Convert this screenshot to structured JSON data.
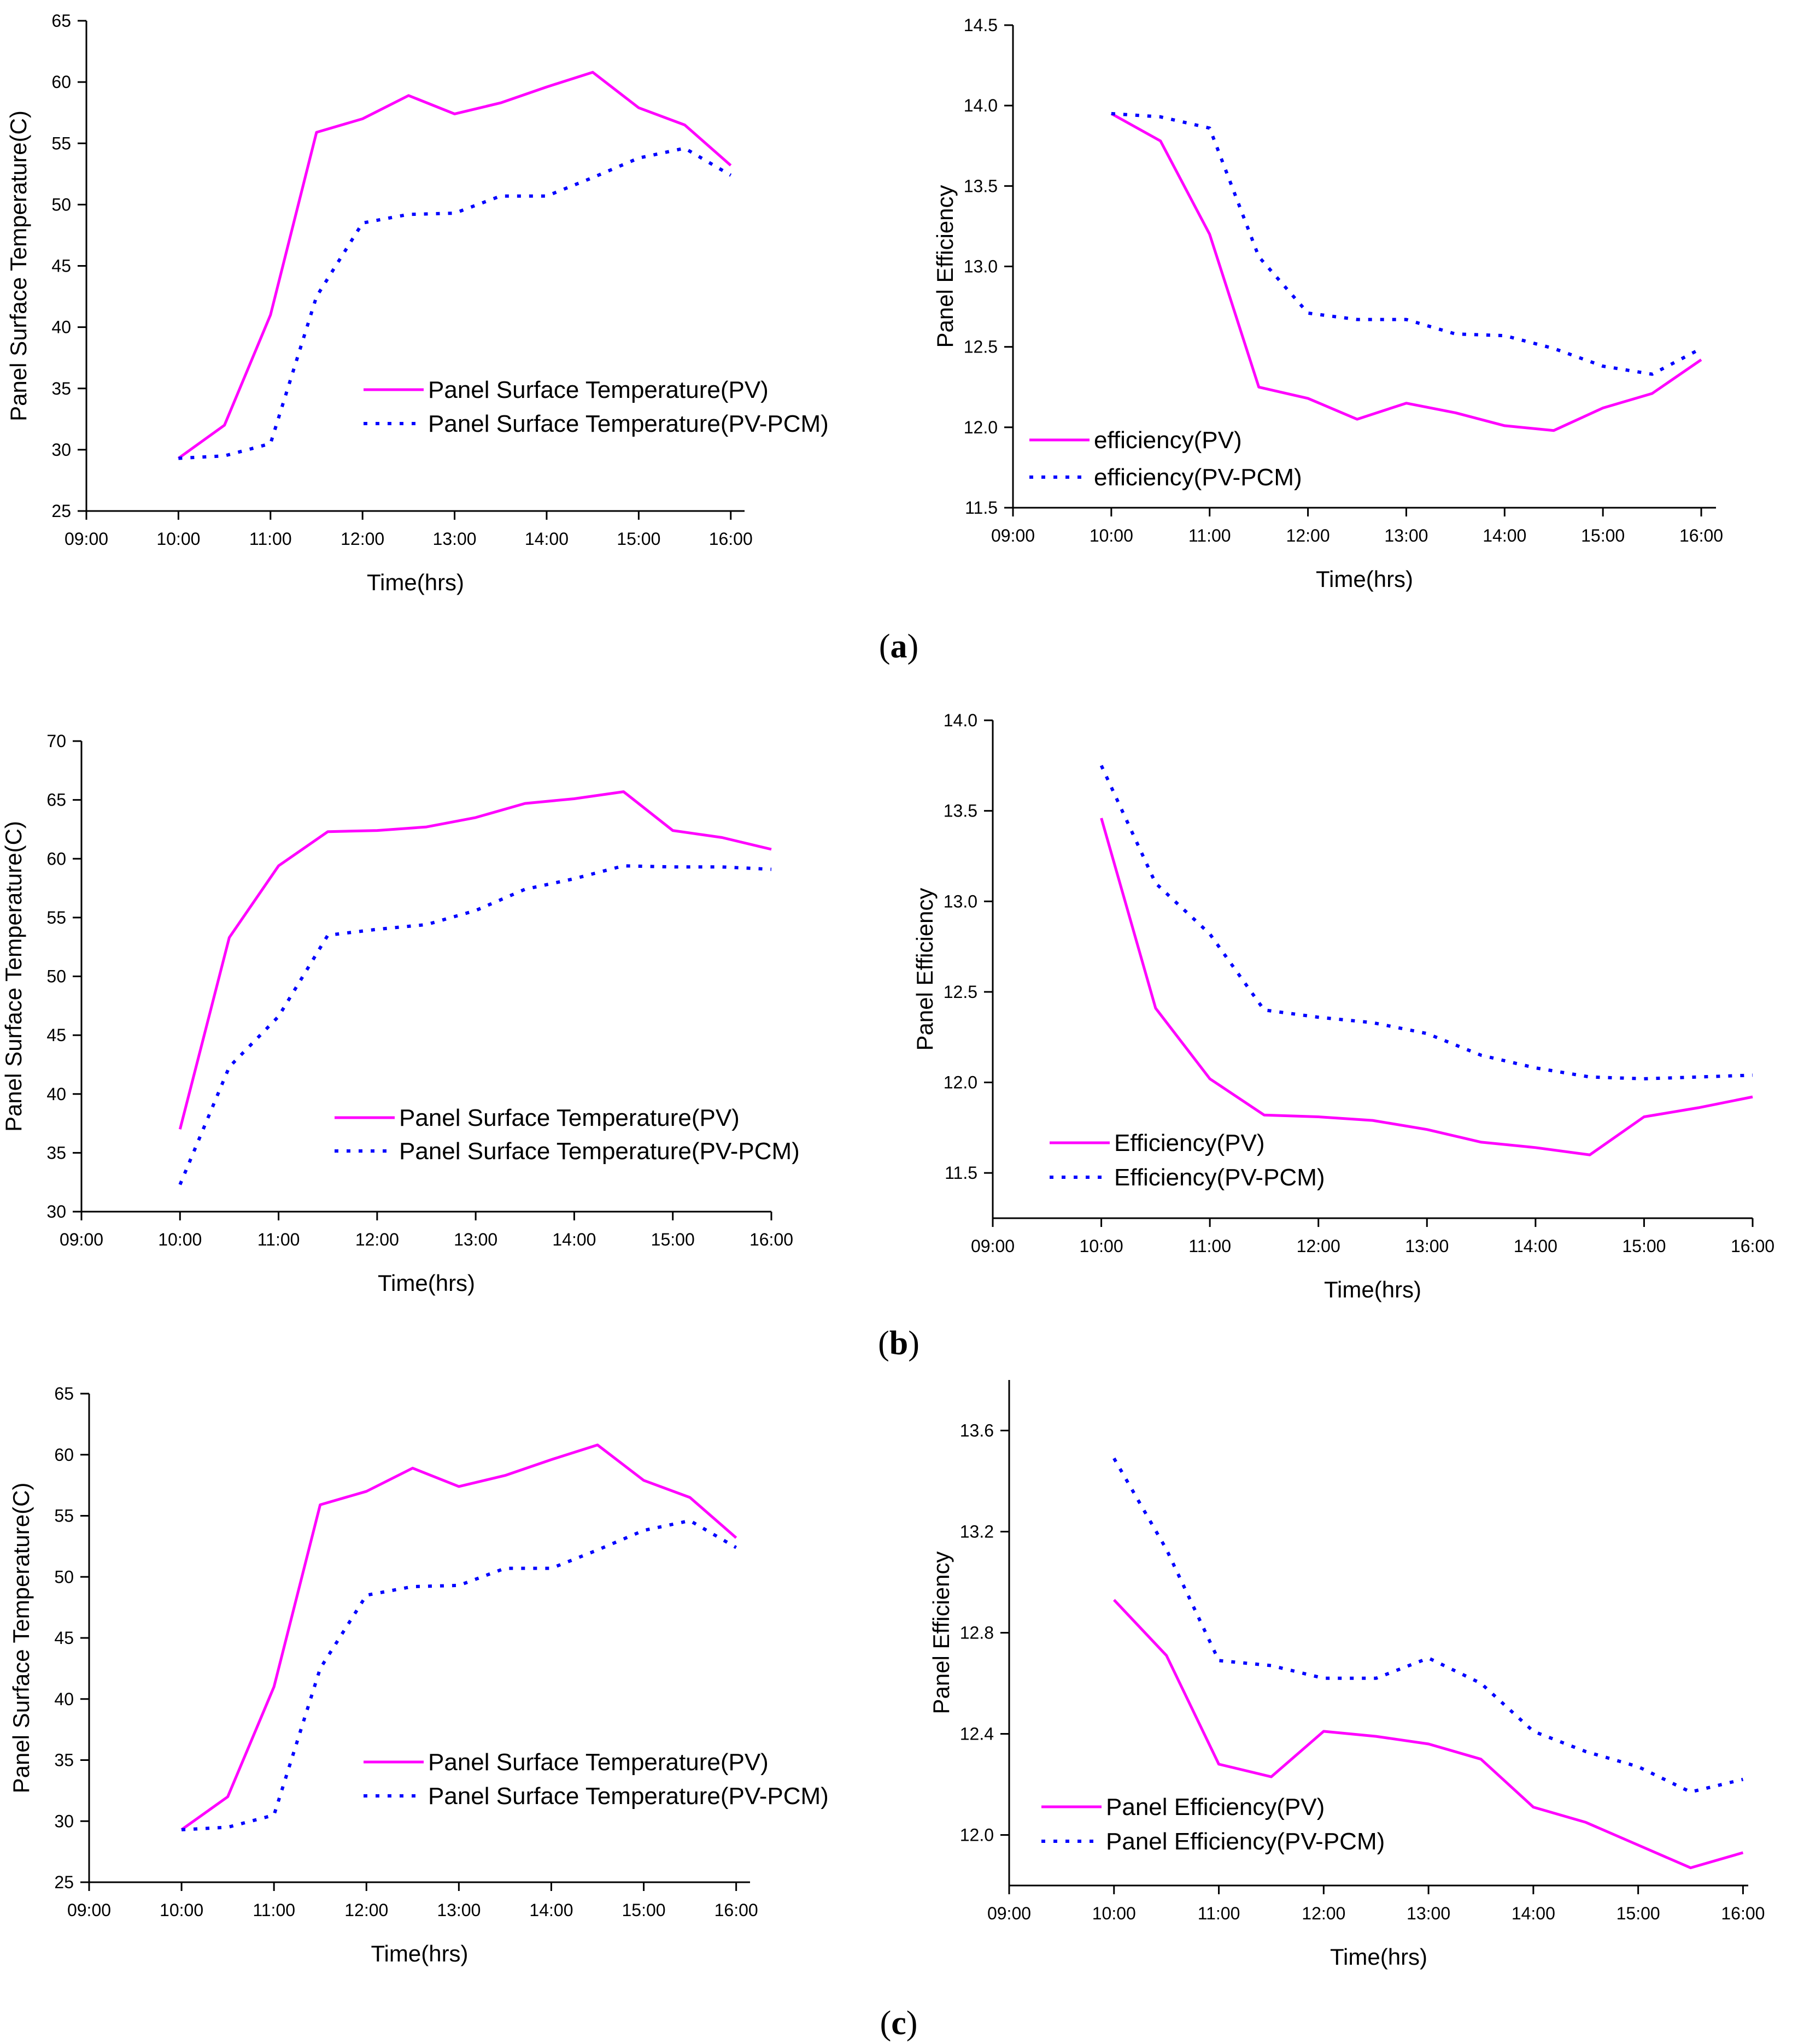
{
  "figure": {
    "panel_labels": [
      "a",
      "b",
      "c"
    ]
  },
  "colors": {
    "pv": "#ff00ff",
    "pcm": "#0000ff",
    "axis": "#000000"
  },
  "chart_data": [
    {
      "id": "a-temp",
      "type": "line",
      "xlabel": "Time(hrs)",
      "ylabel": "Panel Surface Temperature(C)",
      "x_ticks": [
        "09:00",
        "10:00",
        "11:00",
        "12:00",
        "13:00",
        "14:00",
        "15:00",
        "16:00"
      ],
      "xlim": [
        9,
        16.15
      ],
      "ylim": [
        25,
        65
      ],
      "y_ticks": [
        "25",
        "30",
        "35",
        "40",
        "45",
        "50",
        "55",
        "60",
        "65"
      ],
      "y_tick_values": [
        25,
        30,
        35,
        40,
        45,
        50,
        55,
        60,
        65
      ],
      "legend_position": "center-right",
      "series": [
        {
          "name": "Panel Surface Temperature(PV)",
          "style": "solid",
          "x": [
            10,
            10.5,
            11,
            11.5,
            12,
            12.5,
            13,
            13.5,
            14,
            14.5,
            15,
            15.5,
            16
          ],
          "values": [
            29.3,
            32,
            41,
            55.9,
            57,
            58.9,
            57.4,
            58.3,
            59.6,
            60.8,
            57.9,
            56.5,
            53.2
          ]
        },
        {
          "name": "Panel Surface Temperature(PV-PCM)",
          "style": "dotted",
          "x": [
            10,
            10.5,
            11,
            11.5,
            12,
            12.5,
            13,
            13.5,
            14,
            14.5,
            15,
            15.5,
            16
          ],
          "values": [
            29.3,
            29.5,
            30.5,
            42.5,
            48.5,
            49.2,
            49.3,
            50.7,
            50.7,
            52.2,
            53.8,
            54.6,
            52.4
          ]
        }
      ]
    },
    {
      "id": "a-eff",
      "type": "line",
      "xlabel": "Time(hrs)",
      "ylabel": "Panel Efficiency",
      "x_ticks": [
        "09:00",
        "10:00",
        "11:00",
        "12:00",
        "13:00",
        "14:00",
        "15:00",
        "16:00"
      ],
      "xlim": [
        9,
        16.15
      ],
      "ylim": [
        11.5,
        14.5
      ],
      "y_ticks": [
        "11.5",
        "12.0",
        "12.5",
        "13.0",
        "13.5",
        "14.0",
        "14.5"
      ],
      "y_tick_values": [
        11.5,
        12.0,
        12.5,
        13.0,
        13.5,
        14.0,
        14.5
      ],
      "legend_position": "bottom-left",
      "series": [
        {
          "name": "efficiency(PV)",
          "style": "solid",
          "x": [
            10,
            10.5,
            11,
            11.5,
            12,
            12.5,
            13,
            13.5,
            14,
            14.5,
            15,
            15.5,
            16
          ],
          "values": [
            13.95,
            13.78,
            13.2,
            12.25,
            12.18,
            12.05,
            12.15,
            12.09,
            12.01,
            11.98,
            12.12,
            12.21,
            12.42
          ]
        },
        {
          "name": "efficiency(PV-PCM)",
          "style": "dotted",
          "x": [
            10,
            10.5,
            11,
            11.5,
            12,
            12.5,
            13,
            13.5,
            14,
            14.5,
            15,
            15.5,
            16
          ],
          "values": [
            13.95,
            13.93,
            13.86,
            13.06,
            12.71,
            12.67,
            12.67,
            12.58,
            12.57,
            12.49,
            12.38,
            12.33,
            12.49
          ]
        }
      ]
    },
    {
      "id": "b-temp",
      "type": "line",
      "xlabel": "Time(hrs)",
      "ylabel": "Panel Surface Temperature(C)",
      "x_ticks": [
        "09:00",
        "10:00",
        "11:00",
        "12:00",
        "13:00",
        "14:00",
        "15:00",
        "16:00"
      ],
      "xlim": [
        9,
        16
      ],
      "ylim": [
        30,
        70
      ],
      "y_ticks": [
        "30",
        "35",
        "40",
        "45",
        "50",
        "55",
        "60",
        "65",
        "70"
      ],
      "y_tick_values": [
        30,
        35,
        40,
        45,
        50,
        55,
        60,
        65,
        70
      ],
      "legend_position": "bottom-right",
      "series": [
        {
          "name": "Panel Surface Temperature(PV)",
          "style": "solid",
          "x": [
            10,
            10.5,
            11,
            11.5,
            12,
            12.5,
            13,
            13.5,
            14,
            14.5,
            15,
            15.5,
            16
          ],
          "values": [
            37,
            53.3,
            59.4,
            62.3,
            62.4,
            62.7,
            63.5,
            64.7,
            65.1,
            65.7,
            62.4,
            61.8,
            60.8
          ]
        },
        {
          "name": "Panel Surface Temperature(PV-PCM)",
          "style": "dotted",
          "x": [
            10,
            10.5,
            11,
            11.5,
            12,
            12.5,
            13,
            13.5,
            14,
            14.5,
            15,
            15.5,
            16
          ],
          "values": [
            32.3,
            42.3,
            46.6,
            53.5,
            54,
            54.4,
            55.6,
            57.4,
            58.3,
            59.4,
            59.3,
            59.3,
            59.1
          ]
        }
      ]
    },
    {
      "id": "b-eff",
      "type": "line",
      "xlabel": "Time(hrs)",
      "ylabel": "Panel Efficiency",
      "x_ticks": [
        "09:00",
        "10:00",
        "11:00",
        "12:00",
        "13:00",
        "14:00",
        "15:00",
        "16:00"
      ],
      "xlim": [
        9,
        16
      ],
      "ylim": [
        11.25,
        14.0
      ],
      "y_ticks": [
        "11.5",
        "12.0",
        "12.5",
        "13.0",
        "13.5",
        "14.0"
      ],
      "y_tick_values": [
        11.5,
        12.0,
        12.5,
        13.0,
        13.5,
        14.0
      ],
      "legend_position": "bottom-left",
      "series": [
        {
          "name": "Efficiency(PV)",
          "style": "solid",
          "x": [
            10,
            10.5,
            11,
            11.5,
            12,
            12.5,
            13,
            13.5,
            14,
            14.5,
            15,
            15.5,
            16
          ],
          "values": [
            13.46,
            12.41,
            12.02,
            11.82,
            11.81,
            11.79,
            11.74,
            11.67,
            11.64,
            11.6,
            11.81,
            11.86,
            11.92
          ]
        },
        {
          "name": "Efficiency(PV-PCM)",
          "style": "dotted",
          "x": [
            10,
            10.5,
            11,
            11.5,
            12,
            12.5,
            13,
            13.5,
            14,
            14.5,
            15,
            15.5,
            16
          ],
          "values": [
            13.75,
            13.1,
            12.82,
            12.4,
            12.36,
            12.33,
            12.27,
            12.15,
            12.08,
            12.03,
            12.02,
            12.03,
            12.04
          ]
        }
      ]
    },
    {
      "id": "c-temp",
      "type": "line",
      "xlabel": "Time(hrs)",
      "ylabel": "Panel Surface Temperature(C)",
      "x_ticks": [
        "09:00",
        "10:00",
        "11:00",
        "12:00",
        "13:00",
        "14:00",
        "15:00",
        "16:00"
      ],
      "xlim": [
        9,
        16.15
      ],
      "ylim": [
        25,
        65
      ],
      "y_ticks": [
        "25",
        "30",
        "35",
        "40",
        "45",
        "50",
        "55",
        "60",
        "65"
      ],
      "y_tick_values": [
        25,
        30,
        35,
        40,
        45,
        50,
        55,
        60,
        65
      ],
      "legend_position": "center-right",
      "series": [
        {
          "name": "Panel Surface Temperature(PV)",
          "style": "solid",
          "x": [
            10,
            10.5,
            11,
            11.5,
            12,
            12.5,
            13,
            13.5,
            14,
            14.5,
            15,
            15.5,
            16
          ],
          "values": [
            29.3,
            32,
            41,
            55.9,
            57,
            58.9,
            57.4,
            58.3,
            59.6,
            60.8,
            57.9,
            56.5,
            53.2
          ]
        },
        {
          "name": "Panel Surface Temperature(PV-PCM)",
          "style": "dotted",
          "x": [
            10,
            10.5,
            11,
            11.5,
            12,
            12.5,
            13,
            13.5,
            14,
            14.5,
            15,
            15.5,
            16
          ],
          "values": [
            29.3,
            29.5,
            30.5,
            42.5,
            48.5,
            49.2,
            49.3,
            50.7,
            50.7,
            52.2,
            53.8,
            54.6,
            52.4
          ]
        }
      ]
    },
    {
      "id": "c-eff",
      "type": "line",
      "xlabel": "Time(hrs)",
      "ylabel": "Panel Efficiency",
      "x_ticks": [
        "09:00",
        "10:00",
        "11:00",
        "12:00",
        "13:00",
        "14:00",
        "15:00",
        "16:00"
      ],
      "xlim": [
        9,
        16.05
      ],
      "ylim": [
        11.8,
        13.8
      ],
      "y_ticks": [
        "12.0",
        "12.4",
        "12.8",
        "13.2",
        "13.6"
      ],
      "y_tick_values": [
        12.0,
        12.4,
        12.8,
        13.2,
        13.6
      ],
      "legend_position": "bottom-left",
      "series": [
        {
          "name": "Panel Efficiency(PV)",
          "style": "solid",
          "x": [
            10,
            10.5,
            11,
            11.5,
            12,
            12.5,
            13,
            13.5,
            14,
            14.5,
            15,
            15.5,
            16
          ],
          "values": [
            12.93,
            12.71,
            12.28,
            12.23,
            12.41,
            12.39,
            12.36,
            12.3,
            12.11,
            12.05,
            11.96,
            11.87,
            11.93
          ]
        },
        {
          "name": "Panel Efficiency(PV-PCM)",
          "style": "dotted",
          "x": [
            10,
            10.5,
            11,
            11.5,
            12,
            12.5,
            13,
            13.5,
            14,
            14.5,
            15,
            15.5,
            16
          ],
          "values": [
            13.49,
            13.13,
            12.69,
            12.67,
            12.62,
            12.62,
            12.7,
            12.6,
            12.41,
            12.33,
            12.27,
            12.17,
            12.22
          ]
        }
      ]
    }
  ]
}
